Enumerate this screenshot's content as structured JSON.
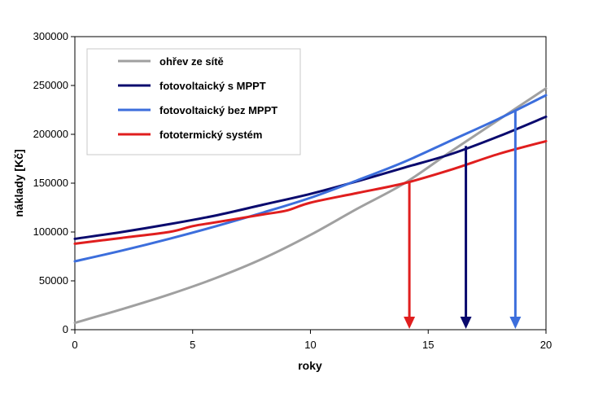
{
  "chart_data": {
    "type": "line",
    "title": "",
    "xlabel": "roky",
    "ylabel": "náklady [Kč]",
    "xlim": [
      0,
      20
    ],
    "ylim": [
      0,
      300000
    ],
    "xticks": [
      0,
      5,
      10,
      15,
      20
    ],
    "yticks": [
      0,
      50000,
      100000,
      150000,
      200000,
      250000,
      300000
    ],
    "xtick_labels": [
      "0",
      "5",
      "10",
      "15",
      "20"
    ],
    "ytick_labels": [
      "0",
      "50000",
      "100000",
      "150000",
      "200000",
      "250000",
      "300000"
    ],
    "grid": false,
    "legend_position": "top-left",
    "series": [
      {
        "name": "ohřev ze sítě",
        "color": "#a0a0a0",
        "x": [
          0,
          2,
          4,
          6,
          8,
          10,
          12,
          14,
          16,
          18,
          20
        ],
        "y": [
          7000,
          21000,
          36000,
          53000,
          73000,
          97000,
          124000,
          150000,
          183000,
          215000,
          247000
        ]
      },
      {
        "name": "fotovoltaický s MPPT",
        "color": "#0a0a6e",
        "x": [
          0,
          2,
          4,
          6,
          8,
          10,
          12,
          14,
          16,
          18,
          20
        ],
        "y": [
          93000,
          100000,
          108000,
          117000,
          128000,
          139000,
          152000,
          166000,
          180000,
          198000,
          218000
        ]
      },
      {
        "name": "fotovoltaický bez MPPT",
        "color": "#3c6edc",
        "x": [
          0,
          2,
          4,
          6,
          8,
          10,
          12,
          14,
          16,
          18,
          20
        ],
        "y": [
          70000,
          81000,
          93000,
          106000,
          120000,
          135000,
          153000,
          172000,
          194000,
          216000,
          240000
        ]
      },
      {
        "name": "fototermický systém",
        "color": "#e01e1e",
        "x": [
          0,
          2,
          4,
          5,
          6,
          8,
          9,
          10,
          12,
          14,
          16,
          18,
          20
        ],
        "y": [
          88000,
          94000,
          100000,
          106000,
          110000,
          118000,
          122000,
          130000,
          140000,
          150000,
          164000,
          180000,
          193000
        ]
      }
    ],
    "annotations": [
      {
        "type": "arrow-down",
        "color": "#e01e1e",
        "x": 14.2,
        "from_y": 152000,
        "to_y": 0
      },
      {
        "type": "arrow-down",
        "color": "#0a0a6e",
        "x": 16.6,
        "from_y": 188000,
        "to_y": 0
      },
      {
        "type": "arrow-down",
        "color": "#3c6edc",
        "x": 18.7,
        "from_y": 224000,
        "to_y": 0
      }
    ]
  }
}
